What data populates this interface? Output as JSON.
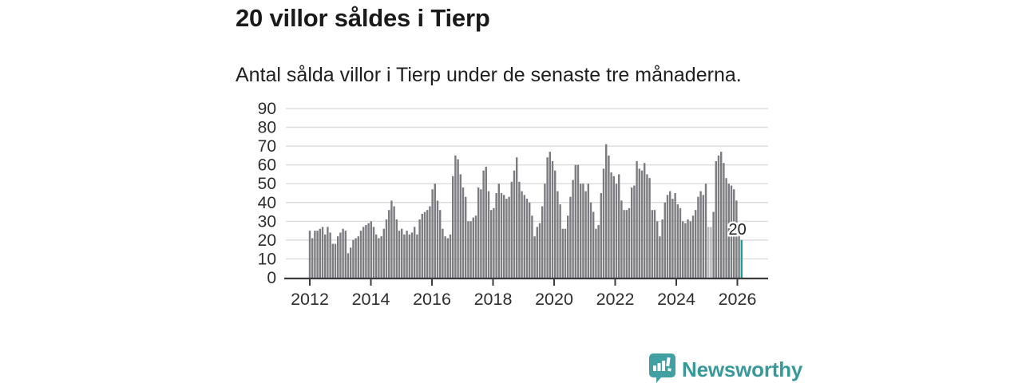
{
  "header": {
    "title": "20 villor såldes i Tierp",
    "subtitle": "Antal sålda villor i Tierp under de senaste tre månaderna."
  },
  "chart_data": {
    "type": "bar",
    "title": "20 villor såldes i Tierp",
    "xlabel": "",
    "ylabel": "",
    "ylim": [
      0,
      90
    ],
    "yticks": [
      0,
      10,
      20,
      30,
      40,
      50,
      60,
      70,
      80,
      90
    ],
    "xticks": [
      2012,
      2014,
      2016,
      2018,
      2020,
      2022,
      2024,
      2026
    ],
    "grid": "horizontal",
    "x_start": "2012-01",
    "frequency": "monthly",
    "values": [
      25,
      21,
      25,
      25,
      26,
      27,
      23,
      27,
      24,
      18,
      18,
      22,
      24,
      26,
      25,
      13,
      16,
      20,
      21,
      22,
      25,
      27,
      28,
      29,
      30,
      27,
      23,
      21,
      22,
      26,
      31,
      36,
      41,
      38,
      31,
      25,
      26,
      23,
      25,
      23,
      24,
      27,
      23,
      31,
      34,
      35,
      36,
      38,
      47,
      50,
      41,
      36,
      26,
      22,
      21,
      23,
      54,
      65,
      63,
      55,
      48,
      43,
      30,
      30,
      32,
      33,
      48,
      47,
      57,
      59,
      46,
      36,
      37,
      45,
      50,
      45,
      44,
      42,
      43,
      51,
      57,
      64,
      51,
      46,
      44,
      42,
      40,
      33,
      22,
      27,
      29,
      38,
      50,
      64,
      67,
      62,
      57,
      46,
      39,
      26,
      26,
      33,
      43,
      52,
      60,
      60,
      50,
      50,
      46,
      50,
      40,
      35,
      26,
      28,
      45,
      58,
      71,
      65,
      56,
      54,
      50,
      55,
      41,
      36,
      36,
      37,
      48,
      49,
      62,
      58,
      57,
      61,
      55,
      53,
      36,
      36,
      30,
      22,
      31,
      40,
      44,
      46,
      42,
      45,
      39,
      37,
      30,
      29,
      31,
      30,
      33,
      36,
      43,
      46,
      44,
      50,
      27,
      27,
      35,
      62,
      65,
      67,
      61,
      53,
      50,
      49,
      47,
      41,
      23
    ],
    "light_indices": [
      156,
      157
    ],
    "highlight": {
      "value": 20,
      "label": "20"
    },
    "colors": {
      "bar": "#7b7b80",
      "bar_light": "#b9b9bd",
      "highlight": "#0fa3a1",
      "grid": "#dcdcdc",
      "axis": "#3b3b3b",
      "tick_label": "#2e2e2e",
      "value_label": "#222222"
    }
  },
  "branding": {
    "logo_text": "Newsworthy",
    "logo_color": "#38999b",
    "logo_icon": "speech-bubble-bar-chart"
  }
}
